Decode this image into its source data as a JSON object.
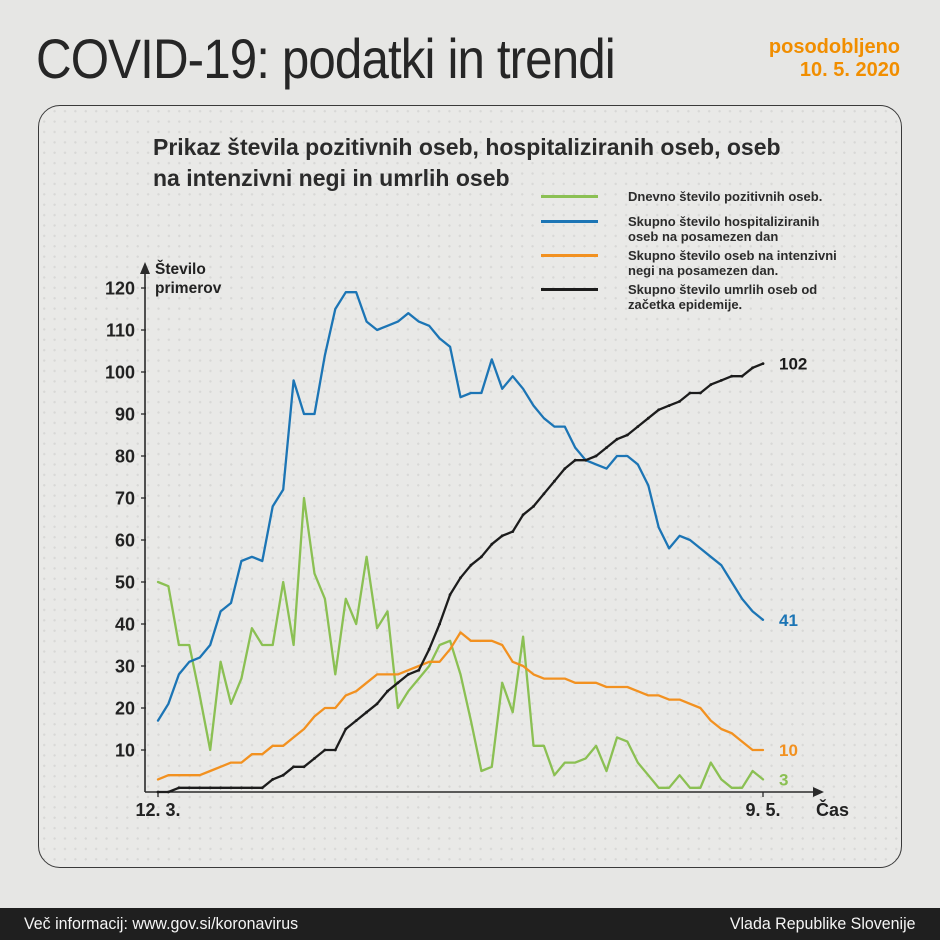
{
  "header": {
    "title": "COVID-19: podatki in trendi",
    "updated_line1": "posodobljeno",
    "updated_line2": "10. 5. 2020"
  },
  "panel": {
    "title_line1": "Prikaz števila pozitivnih oseb, hospitaliziranih oseb, oseb",
    "title_line2": "na intenzivni negi in umrlih oseb"
  },
  "legend": {
    "items": [
      {
        "label": "Dnevno število pozitivnih oseb.",
        "color": "#8bc053"
      },
      {
        "label": "Skupno število hospitaliziranih oseb na posamezen dan",
        "color": "#1c75b5"
      },
      {
        "label": "Skupno število oseb na intenzivni negi na posamezen dan.",
        "color": "#f29120"
      },
      {
        "label": "Skupno število umrlih oseb od začetka epidemije.",
        "color": "#1c1c1c"
      }
    ]
  },
  "axis": {
    "y_label_line1": "Število",
    "y_label_line2": "primerov",
    "x_label": "Čas",
    "x_tick_start": "12. 3.",
    "x_tick_end": "9. 5."
  },
  "chart_data": {
    "type": "line",
    "title": "Prikaz števila pozitivnih oseb, hospitaliziranih oseb, oseb na intenzivni negi in umrlih oseb",
    "x": {
      "start_label": "12. 3.",
      "end_label": "9. 5.",
      "unit": "day",
      "n_points": 59
    },
    "ylim": [
      0,
      120
    ],
    "ytick_step": 10,
    "grid": "dotted",
    "legend_position": "top-right",
    "series": [
      {
        "name": "Dnevno število pozitivnih oseb.",
        "color": "#8bc053",
        "end_label": "3",
        "markers": false,
        "values": [
          50,
          49,
          35,
          35,
          23,
          10,
          31,
          21,
          27,
          39,
          35,
          35,
          50,
          35,
          70,
          52,
          46,
          28,
          46,
          40,
          56,
          39,
          43,
          20,
          24,
          27,
          30,
          35,
          36,
          28,
          17,
          5,
          6,
          26,
          19,
          37,
          11,
          11,
          4,
          7,
          7,
          8,
          11,
          5,
          13,
          12,
          7,
          4,
          1,
          1,
          4,
          1,
          1,
          7,
          3,
          1,
          1,
          5,
          3
        ]
      },
      {
        "name": "Skupno število hospitaliziranih oseb na posamezen dan",
        "color": "#1c75b5",
        "end_label": "41",
        "markers": false,
        "values": [
          17,
          21,
          28,
          31,
          32,
          35,
          43,
          45,
          55,
          56,
          55,
          68,
          72,
          98,
          90,
          90,
          104,
          115,
          119,
          119,
          112,
          110,
          111,
          112,
          114,
          112,
          111,
          108,
          106,
          94,
          95,
          95,
          103,
          96,
          99,
          96,
          92,
          89,
          87,
          87,
          82,
          79,
          78,
          77,
          80,
          80,
          78,
          73,
          63,
          58,
          61,
          60,
          58,
          56,
          54,
          50,
          46,
          43,
          41
        ]
      },
      {
        "name": "Skupno število oseb na intenzivni negi na posamezen dan.",
        "color": "#f29120",
        "end_label": "10",
        "markers": false,
        "values": [
          3,
          4,
          4,
          4,
          4,
          5,
          6,
          7,
          7,
          9,
          9,
          11,
          11,
          13,
          15,
          18,
          20,
          20,
          23,
          24,
          26,
          28,
          28,
          28,
          29,
          30,
          31,
          31,
          34,
          38,
          36,
          36,
          36,
          35,
          31,
          30,
          28,
          27,
          27,
          27,
          26,
          26,
          26,
          25,
          25,
          25,
          24,
          23,
          23,
          22,
          22,
          21,
          20,
          17,
          15,
          14,
          12,
          10,
          10
        ]
      },
      {
        "name": "Skupno število umrlih oseb od začetka epidemije.",
        "color": "#1c1c1c",
        "end_label": "102",
        "markers": true,
        "values": [
          0,
          0,
          1,
          1,
          1,
          1,
          1,
          1,
          1,
          1,
          1,
          3,
          4,
          6,
          6,
          8,
          10,
          10,
          15,
          17,
          19,
          21,
          24,
          26,
          28,
          29,
          34,
          40,
          47,
          51,
          54,
          56,
          59,
          61,
          62,
          66,
          68,
          71,
          74,
          77,
          79,
          79,
          80,
          82,
          84,
          85,
          87,
          89,
          91,
          92,
          93,
          95,
          95,
          97,
          98,
          99,
          99,
          101,
          102
        ]
      }
    ]
  },
  "footer": {
    "left": "Več informacij: www.gov.si/koronavirus",
    "right": "Vlada Republike Slovenije"
  }
}
